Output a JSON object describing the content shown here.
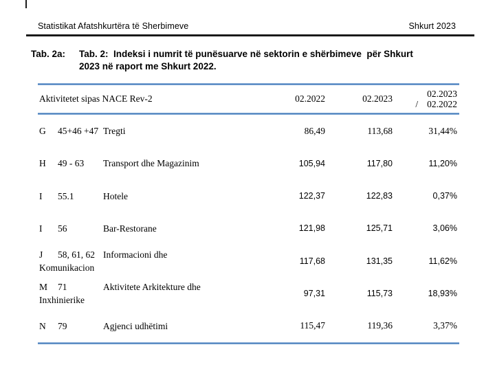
{
  "page": {
    "header": {
      "left": "Statistikat Afatshkurtëra të Sherbimeve",
      "right": "Shkurt 2023"
    },
    "title": {
      "label": "Tab. 2a:",
      "line1": "Tab. 2:  Indeksi i numrit të punësuarve në sektorin e shërbimeve  për Shkurt",
      "line2": "2023 në raport me Shkurt 2022."
    },
    "colors": {
      "rule_blue": "#4a7ebb",
      "rule_blue_edge": "#a9c8e8",
      "text": "#000000"
    }
  },
  "table": {
    "header": {
      "col_activity": "Aktivitetet sipas NACE Rev-2",
      "col_2022": "02.2022",
      "col_2023": "02.2023",
      "col_ratio_top": "02.2023",
      "col_ratio_slash": "/",
      "col_ratio_bottom": "02.2022"
    },
    "rows": [
      {
        "letter": "G",
        "code": "45+46 +47",
        "name": "Tregti",
        "name2": "",
        "v2022": "86,49",
        "v2023": "113,68",
        "pct": "31,44%",
        "num_font": "serif"
      },
      {
        "letter": "H",
        "code": "49 - 63",
        "name": "Transport dhe Magazinim",
        "name2": "",
        "v2022": "105,94",
        "v2023": "117,80",
        "pct": "11,20%",
        "num_font": "sans"
      },
      {
        "letter": "I",
        "code": "55.1",
        "name": "Hotele",
        "name2": "",
        "v2022": "122,37",
        "v2023": "122,83",
        "pct": "0,37%",
        "num_font": "sans"
      },
      {
        "letter": "I",
        "code": "56",
        "name": "Bar-Restorane",
        "name2": "",
        "v2022": "121,98",
        "v2023": "125,71",
        "pct": "3,06%",
        "num_font": "sans"
      },
      {
        "letter": "J",
        "code": "58, 61, 62",
        "name": "Informacioni dhe",
        "name2": "Komunikacion",
        "v2022": "117,68",
        "v2023": "131,35",
        "pct": "11,62%",
        "num_font": "sans"
      },
      {
        "letter": "M",
        "code": "71",
        "name": "Aktivitete Arkitekture dhe",
        "name2": "Inxhinierike",
        "v2022": "97,31",
        "v2023": "115,73",
        "pct": "18,93%",
        "num_font": "sans"
      },
      {
        "letter": "N",
        "code": "79",
        "name": "Agjenci udhëtimi",
        "name2": "",
        "v2022": "115,47",
        "v2023": "119,36",
        "pct": "3,37%",
        "num_font": "serif"
      }
    ]
  }
}
